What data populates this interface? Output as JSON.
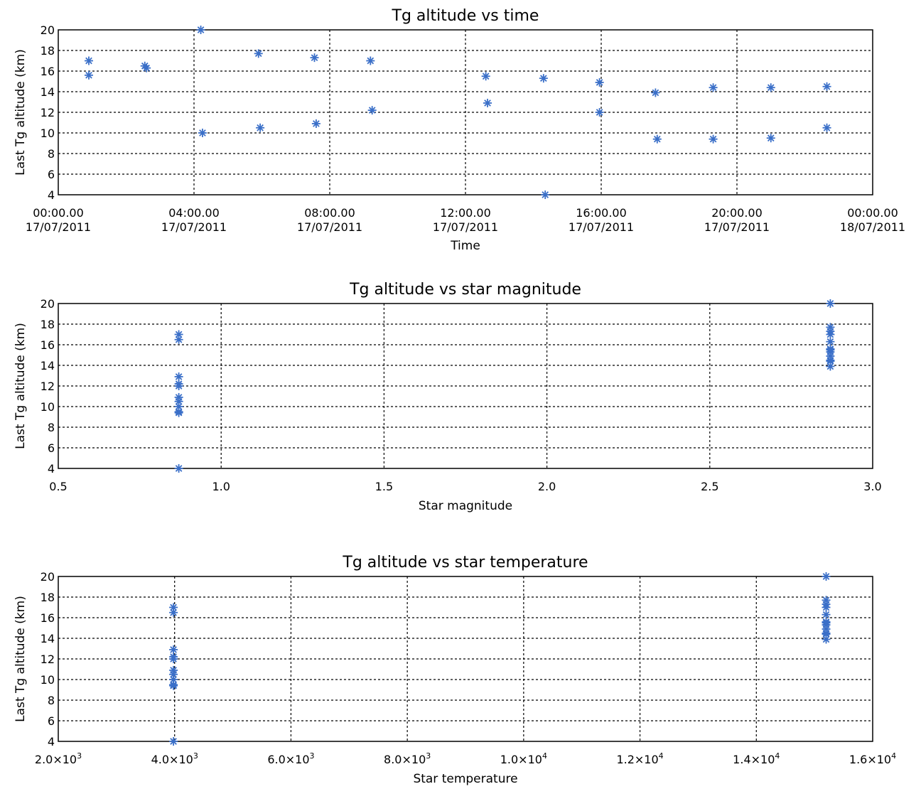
{
  "marker_color": "#3a6fc8",
  "chart_data": [
    {
      "type": "scatter",
      "title": "Tg altitude vs time",
      "xlabel": "Time",
      "ylabel": "Last Tg altitude (km)",
      "xlim_hours": [
        0,
        24
      ],
      "ylim": [
        4,
        20
      ],
      "grid": true,
      "x_ticks": [
        {
          "value": 0,
          "label": [
            "00:00.00",
            "17/07/2011"
          ]
        },
        {
          "value": 4,
          "label": [
            "04:00.00",
            "17/07/2011"
          ]
        },
        {
          "value": 8,
          "label": [
            "08:00.00",
            "17/07/2011"
          ]
        },
        {
          "value": 12,
          "label": [
            "12:00.00",
            "17/07/2011"
          ]
        },
        {
          "value": 16,
          "label": [
            "16:00.00",
            "17/07/2011"
          ]
        },
        {
          "value": 20,
          "label": [
            "20:00.00",
            "17/07/2011"
          ]
        },
        {
          "value": 24,
          "label": [
            "00:00.00",
            "18/07/2011"
          ]
        }
      ],
      "y_ticks": [
        4,
        6,
        8,
        10,
        12,
        14,
        16,
        18,
        20
      ],
      "points": [
        {
          "x": 0.9,
          "y": 17.0
        },
        {
          "x": 0.9,
          "y": 15.6
        },
        {
          "x": 2.55,
          "y": 16.5
        },
        {
          "x": 2.6,
          "y": 16.3
        },
        {
          "x": 4.2,
          "y": 20.0
        },
        {
          "x": 4.25,
          "y": 10.0
        },
        {
          "x": 5.9,
          "y": 17.7
        },
        {
          "x": 5.95,
          "y": 10.5
        },
        {
          "x": 7.55,
          "y": 17.3
        },
        {
          "x": 7.6,
          "y": 10.9
        },
        {
          "x": 9.2,
          "y": 17.0
        },
        {
          "x": 9.25,
          "y": 12.2
        },
        {
          "x": 12.6,
          "y": 15.5
        },
        {
          "x": 12.65,
          "y": 12.9
        },
        {
          "x": 14.3,
          "y": 15.3
        },
        {
          "x": 14.35,
          "y": 4.0
        },
        {
          "x": 15.95,
          "y": 14.9
        },
        {
          "x": 15.95,
          "y": 12.0
        },
        {
          "x": 17.6,
          "y": 13.9
        },
        {
          "x": 17.65,
          "y": 9.4
        },
        {
          "x": 19.3,
          "y": 14.4
        },
        {
          "x": 19.3,
          "y": 9.4
        },
        {
          "x": 21.0,
          "y": 14.4
        },
        {
          "x": 21.0,
          "y": 9.5
        },
        {
          "x": 22.65,
          "y": 14.5
        },
        {
          "x": 22.65,
          "y": 10.5
        }
      ]
    },
    {
      "type": "scatter",
      "title": "Tg altitude vs star magnitude",
      "xlabel": "Star magnitude",
      "ylabel": "Last Tg altitude (km)",
      "xlim": [
        0.5,
        3.0
      ],
      "ylim": [
        4,
        20
      ],
      "grid": true,
      "x_ticks": [
        {
          "value": 0.5,
          "label": [
            "0.5"
          ]
        },
        {
          "value": 1.0,
          "label": [
            "1.0"
          ]
        },
        {
          "value": 1.5,
          "label": [
            "1.5"
          ]
        },
        {
          "value": 2.0,
          "label": [
            "2.0"
          ]
        },
        {
          "value": 2.5,
          "label": [
            "2.5"
          ]
        },
        {
          "value": 3.0,
          "label": [
            "3.0"
          ]
        }
      ],
      "y_ticks": [
        4,
        6,
        8,
        10,
        12,
        14,
        16,
        18,
        20
      ],
      "points": [
        {
          "x": 0.87,
          "y": 17.0
        },
        {
          "x": 0.87,
          "y": 16.5
        },
        {
          "x": 0.87,
          "y": 12.9
        },
        {
          "x": 0.87,
          "y": 12.2
        },
        {
          "x": 0.87,
          "y": 12.0
        },
        {
          "x": 0.87,
          "y": 10.9
        },
        {
          "x": 0.87,
          "y": 10.5
        },
        {
          "x": 0.87,
          "y": 10.0
        },
        {
          "x": 0.87,
          "y": 9.5
        },
        {
          "x": 0.87,
          "y": 9.4
        },
        {
          "x": 0.87,
          "y": 4.0
        },
        {
          "x": 2.87,
          "y": 20.0
        },
        {
          "x": 2.87,
          "y": 17.7
        },
        {
          "x": 2.87,
          "y": 17.3
        },
        {
          "x": 2.87,
          "y": 17.0
        },
        {
          "x": 2.87,
          "y": 16.3
        },
        {
          "x": 2.87,
          "y": 15.6
        },
        {
          "x": 2.87,
          "y": 15.5
        },
        {
          "x": 2.87,
          "y": 15.3
        },
        {
          "x": 2.87,
          "y": 14.9
        },
        {
          "x": 2.87,
          "y": 14.5
        },
        {
          "x": 2.87,
          "y": 14.4
        },
        {
          "x": 2.87,
          "y": 13.9
        }
      ]
    },
    {
      "type": "scatter",
      "title": "Tg altitude vs star temperature",
      "xlabel": "Star temperature",
      "ylabel": "Last Tg altitude (km)",
      "xlim": [
        2000,
        16000
      ],
      "ylim": [
        4,
        20
      ],
      "grid": true,
      "x_ticks": [
        {
          "value": 2000,
          "mant": "2.0",
          "exp": "3"
        },
        {
          "value": 4000,
          "mant": "4.0",
          "exp": "3"
        },
        {
          "value": 6000,
          "mant": "6.0",
          "exp": "3"
        },
        {
          "value": 8000,
          "mant": "8.0",
          "exp": "3"
        },
        {
          "value": 10000,
          "mant": "1.0",
          "exp": "4"
        },
        {
          "value": 12000,
          "mant": "1.2",
          "exp": "4"
        },
        {
          "value": 14000,
          "mant": "1.4",
          "exp": "4"
        },
        {
          "value": 16000,
          "mant": "1.6",
          "exp": "4"
        }
      ],
      "y_ticks": [
        4,
        6,
        8,
        10,
        12,
        14,
        16,
        18,
        20
      ],
      "points": [
        {
          "x": 3980,
          "y": 17.0
        },
        {
          "x": 3980,
          "y": 16.5
        },
        {
          "x": 3980,
          "y": 12.9
        },
        {
          "x": 3980,
          "y": 12.2
        },
        {
          "x": 3980,
          "y": 12.0
        },
        {
          "x": 3980,
          "y": 10.9
        },
        {
          "x": 3980,
          "y": 10.5
        },
        {
          "x": 3980,
          "y": 10.0
        },
        {
          "x": 3980,
          "y": 9.5
        },
        {
          "x": 3980,
          "y": 9.4
        },
        {
          "x": 3980,
          "y": 4.0
        },
        {
          "x": 15200,
          "y": 20.0
        },
        {
          "x": 15200,
          "y": 17.7
        },
        {
          "x": 15200,
          "y": 17.3
        },
        {
          "x": 15200,
          "y": 17.0
        },
        {
          "x": 15200,
          "y": 16.3
        },
        {
          "x": 15200,
          "y": 15.6
        },
        {
          "x": 15200,
          "y": 15.5
        },
        {
          "x": 15200,
          "y": 15.3
        },
        {
          "x": 15200,
          "y": 14.9
        },
        {
          "x": 15200,
          "y": 14.5
        },
        {
          "x": 15200,
          "y": 14.4
        },
        {
          "x": 15200,
          "y": 13.9
        }
      ]
    }
  ]
}
